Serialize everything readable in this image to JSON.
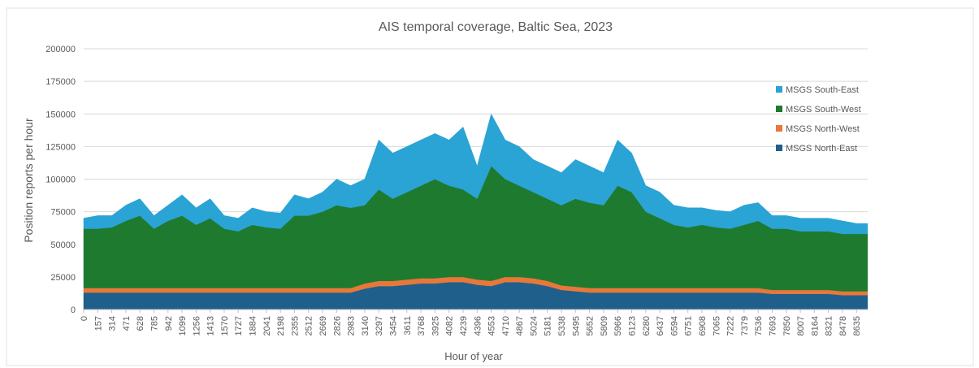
{
  "chart_data": {
    "type": "stacked-area",
    "title": "AIS temporal coverage, Baltic Sea, 2023",
    "x_label": "Hour of year",
    "y_label": "Position reports  per hour",
    "x": [
      0,
      157,
      314,
      471,
      628,
      785,
      942,
      1099,
      1256,
      1413,
      1570,
      1727,
      1884,
      2041,
      2198,
      2355,
      2512,
      2669,
      2826,
      2983,
      3140,
      3297,
      3454,
      3611,
      3768,
      3925,
      4082,
      4239,
      4396,
      4553,
      4710,
      4867,
      5024,
      5181,
      5338,
      5495,
      5652,
      5809,
      5966,
      6123,
      6280,
      6437,
      6594,
      6751,
      6908,
      7065,
      7222,
      7379,
      7536,
      7693,
      7850,
      8007,
      8164,
      8321,
      8478,
      8635,
      8759
    ],
    "xlim": [
      0,
      8760
    ],
    "xticks": [
      0,
      157,
      314,
      471,
      628,
      785,
      942,
      1099,
      1256,
      1413,
      1570,
      1727,
      1884,
      2041,
      2198,
      2355,
      2512,
      2669,
      2826,
      2983,
      3140,
      3297,
      3454,
      3611,
      3768,
      3925,
      4082,
      4239,
      4396,
      4553,
      4710,
      4867,
      5024,
      5181,
      5338,
      5495,
      5652,
      5809,
      5966,
      6123,
      6280,
      6437,
      6594,
      6751,
      6908,
      7065,
      7222,
      7379,
      7536,
      7693,
      7850,
      8007,
      8164,
      8321,
      8478,
      8635
    ],
    "ylim": [
      0,
      200000
    ],
    "yticks": [
      0,
      25000,
      50000,
      75000,
      100000,
      125000,
      150000,
      175000,
      200000
    ],
    "grid": true,
    "legend_position": "right",
    "series": [
      {
        "name": "MSGS North-East",
        "color": "#1f5f8b",
        "values": [
          13000,
          13000,
          13000,
          13000,
          13000,
          13000,
          13000,
          13000,
          13000,
          13000,
          13000,
          13000,
          13000,
          13000,
          13000,
          13000,
          13000,
          13000,
          13000,
          13000,
          16000,
          18000,
          18000,
          19000,
          20000,
          20000,
          21000,
          21000,
          19000,
          18000,
          21000,
          21000,
          20000,
          18000,
          15000,
          14000,
          13000,
          13000,
          13000,
          13000,
          13000,
          13000,
          13000,
          13000,
          13000,
          13000,
          13000,
          13000,
          13000,
          12000,
          12000,
          12000,
          12000,
          12000,
          11000,
          11000,
          11000
        ]
      },
      {
        "name": "MSGS North-West",
        "color": "#e8773a",
        "values": [
          3500,
          3500,
          3500,
          3500,
          3500,
          3500,
          3500,
          3500,
          3500,
          3500,
          3500,
          3500,
          3500,
          3500,
          3500,
          3500,
          3500,
          3500,
          3500,
          3500,
          4000,
          4000,
          4000,
          4000,
          4000,
          4000,
          4000,
          4000,
          4000,
          4000,
          4000,
          4000,
          4000,
          4000,
          3500,
          3500,
          3500,
          3500,
          3500,
          3500,
          3500,
          3500,
          3500,
          3500,
          3500,
          3500,
          3500,
          3500,
          3500,
          3000,
          3000,
          3000,
          3000,
          3000,
          3000,
          3000,
          3000
        ]
      },
      {
        "name": "MSGS South-West",
        "color": "#1e7a2e",
        "values": [
          45500,
          45500,
          46500,
          51500,
          55500,
          45500,
          51500,
          55500,
          48500,
          53500,
          45500,
          43500,
          48500,
          46500,
          45500,
          55500,
          55500,
          58500,
          63500,
          61500,
          60000,
          70000,
          63000,
          67000,
          71000,
          76000,
          70000,
          67000,
          62000,
          88000,
          75000,
          70000,
          66000,
          63000,
          61500,
          67500,
          65500,
          63500,
          78500,
          73500,
          58500,
          53500,
          48500,
          46500,
          48500,
          46500,
          45500,
          48500,
          51500,
          47000,
          47000,
          45000,
          45000,
          45000,
          44000,
          44000,
          44000
        ]
      },
      {
        "name": "MSGS South-East",
        "color": "#2aa3d5",
        "values": [
          8000,
          10000,
          9000,
          12000,
          13000,
          10000,
          12000,
          16000,
          13000,
          15000,
          10000,
          10000,
          13000,
          12000,
          12000,
          16000,
          13000,
          15000,
          20000,
          17000,
          20000,
          38000,
          35000,
          35000,
          35000,
          35000,
          35000,
          48000,
          25000,
          40000,
          30000,
          30000,
          25000,
          25000,
          25000,
          30000,
          28000,
          25000,
          35000,
          30000,
          20000,
          20000,
          15000,
          15000,
          13000,
          13000,
          13000,
          15000,
          14000,
          10000,
          10000,
          10000,
          10000,
          10000,
          10000,
          8000,
          8000
        ]
      }
    ]
  }
}
